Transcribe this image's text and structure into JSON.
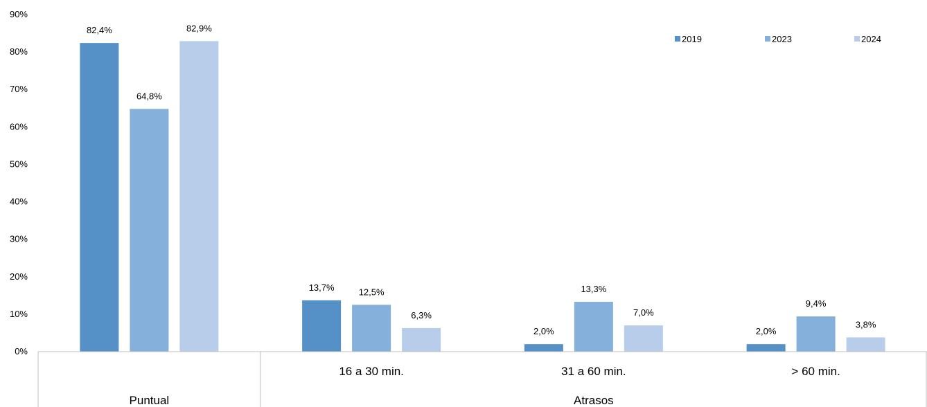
{
  "chart_data": {
    "type": "bar",
    "categories": [
      "Puntual",
      "16 a 30 min.",
      "31 a 60 min.",
      "> 60 min."
    ],
    "group_labels": [
      "Puntual",
      "Atrasos"
    ],
    "series": [
      {
        "name": "2019",
        "color": "#5591c7",
        "values": [
          82.4,
          13.7,
          2.0,
          2.0
        ],
        "labels": [
          "82,4%",
          "13,7%",
          "2,0%",
          "2,0%"
        ]
      },
      {
        "name": "2023",
        "color": "#86b0dc",
        "values": [
          64.8,
          12.5,
          13.3,
          9.4
        ],
        "labels": [
          "64,8%",
          "12,5%",
          "13,3%",
          "9,4%"
        ]
      },
      {
        "name": "2024",
        "color": "#b8cde9",
        "values": [
          82.9,
          6.3,
          7.0,
          3.8
        ],
        "labels": [
          "82,9%",
          "6,3%",
          "7,0%",
          "3,8%"
        ]
      }
    ],
    "yticks": [
      "0%",
      "10%",
      "20%",
      "30%",
      "40%",
      "50%",
      "60%",
      "70%",
      "80%",
      "90%"
    ],
    "ylim": [
      0,
      90
    ],
    "grid": false,
    "legend_position": "top-right"
  }
}
